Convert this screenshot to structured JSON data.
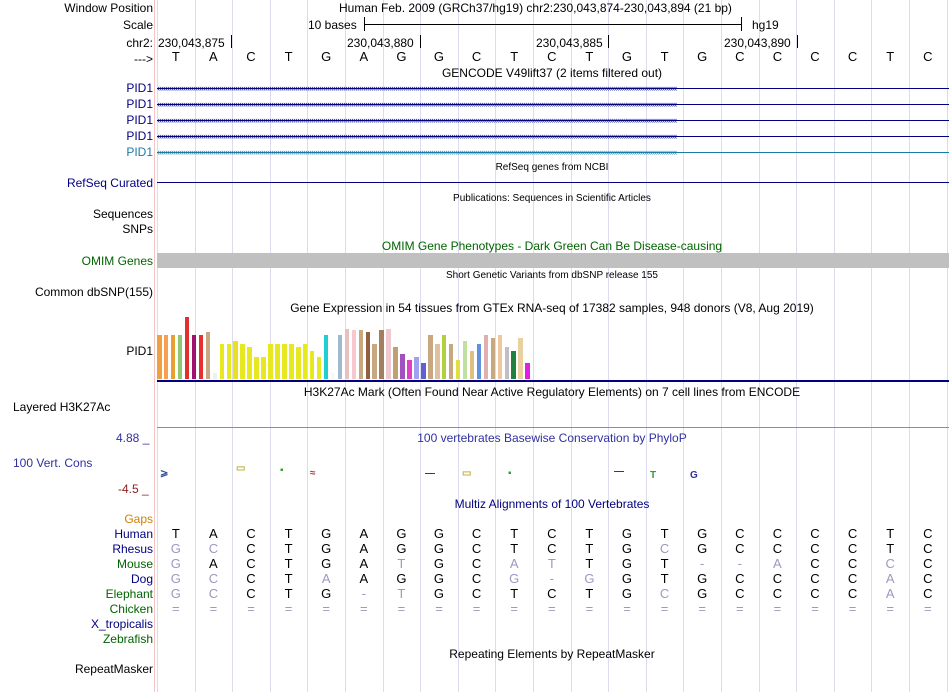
{
  "header": {
    "window_position_label": "Window Position",
    "window_position_text": "Human Feb. 2009 (GRCh37/hg19)   chr2:230,043,874-230,043,894 (21 bp)",
    "scale_label": "Scale",
    "scale_text": "10 bases",
    "scale_assembly": "hg19",
    "chr_label": "chr2:",
    "ruler_ticks": [
      "230,043,875",
      "230,043,880",
      "230,043,885",
      "230,043,890"
    ],
    "strand_label": "--->"
  },
  "sequence": [
    "T",
    "A",
    "C",
    "T",
    "G",
    "A",
    "G",
    "G",
    "C",
    "T",
    "C",
    "T",
    "G",
    "T",
    "G",
    "C",
    "C",
    "C",
    "C",
    "T",
    "C"
  ],
  "tracks": {
    "gencode_title": "GENCODE V49lift37 (2 items filtered out)",
    "gencode_items": [
      "PID1",
      "PID1",
      "PID1",
      "PID1",
      "PID1"
    ],
    "refseq_title": "RefSeq genes from NCBI",
    "refseq_label": "RefSeq Curated",
    "publications_title": "Publications: Sequences in Scientific Articles",
    "sequences_label": "Sequences",
    "snps_label": "SNPs",
    "omim_title": "OMIM Gene Phenotypes - Dark Green Can Be Disease-causing",
    "omim_label": "OMIM Genes",
    "dbsnp_title": "Short Genetic Variants from dbSNP release 155",
    "dbsnp_label": "Common dbSNP(155)",
    "gtex_title": "Gene Expression in 54 tissues from GTEx RNA-seq of 17382 samples, 948 donors (V8, Aug 2019)",
    "gtex_label": "PID1",
    "h3k27_title": "H3K27Ac Mark (Often Found Near Active Regulatory Elements) on 7 cell lines from ENCODE",
    "h3k27_label": "Layered H3K27Ac",
    "phylop_title": "100 vertebrates Basewise Conservation by PhyloP",
    "phylop_label": "100 Vert. Cons",
    "phylop_max": "4.88 _",
    "phylop_min": "-4.5 _",
    "multiz_title": "Multiz Alignments of 100 Vertebrates",
    "gaps_label": "Gaps",
    "repeat_title": "Repeating Elements by RepeatMasker",
    "repeat_label": "RepeatMasker"
  },
  "alignment": {
    "species": [
      "Human",
      "Rhesus",
      "Mouse",
      "Dog",
      "Elephant",
      "Chicken",
      "X_tropicalis",
      "Zebrafish"
    ],
    "rows": [
      [
        "T",
        "A",
        "C",
        "T",
        "G",
        "A",
        "G",
        "G",
        "C",
        "T",
        "C",
        "T",
        "G",
        "T",
        "G",
        "C",
        "C",
        "C",
        "C",
        "T",
        "C"
      ],
      [
        "G",
        "C",
        "C",
        "T",
        "G",
        "A",
        "G",
        "G",
        "C",
        "T",
        "C",
        "T",
        "G",
        "C",
        "G",
        "C",
        "C",
        "C",
        "C",
        "T",
        "C"
      ],
      [
        "G",
        "A",
        "C",
        "T",
        "G",
        "A",
        "T",
        "G",
        "C",
        "A",
        "T",
        "T",
        "G",
        "T",
        "-",
        "-",
        "A",
        "C",
        "C",
        "C",
        "C"
      ],
      [
        "G",
        "C",
        "C",
        "T",
        "A",
        "A",
        "G",
        "G",
        "C",
        "G",
        "-",
        "G",
        "G",
        "T",
        "G",
        "C",
        "C",
        "C",
        "C",
        "A",
        "C"
      ],
      [
        "G",
        "C",
        "C",
        "T",
        "G",
        "-",
        "T",
        "G",
        "C",
        "T",
        "C",
        "T",
        "G",
        "C",
        "G",
        "C",
        "C",
        "C",
        "C",
        "A",
        "C"
      ],
      [
        "=",
        "=",
        "=",
        "=",
        "=",
        "=",
        "=",
        "=",
        "=",
        "=",
        "=",
        "=",
        "=",
        "=",
        "=",
        "=",
        "=",
        "=",
        "=",
        "=",
        "="
      ]
    ]
  },
  "gtex_values": [
    0.7,
    0.7,
    0.7,
    0.7,
    0.98,
    0.7,
    0.7,
    0.75,
    0.1,
    0.55,
    0.55,
    0.6,
    0.55,
    0.5,
    0.35,
    0.35,
    0.55,
    0.55,
    0.55,
    0.55,
    0.5,
    0.55,
    0.45,
    0.35,
    0.7,
    0.1,
    0.7,
    0.8,
    0.78,
    0.78,
    0.75,
    0.55,
    0.78,
    0.8,
    0.5,
    0.4,
    0.3,
    0.35,
    0.25,
    0.7,
    0.55,
    0.7,
    0.55,
    0.3,
    0.6,
    0.45,
    0.55,
    0.7,
    0.65,
    0.7,
    0.5,
    0.45,
    0.65,
    0.25
  ],
  "colors": {
    "track_label_blue": "#000080",
    "omim_green": "#006400",
    "gaps_orange": "#d08000",
    "elephant_green": "#006400",
    "phylop_blue": "#3030a0"
  }
}
